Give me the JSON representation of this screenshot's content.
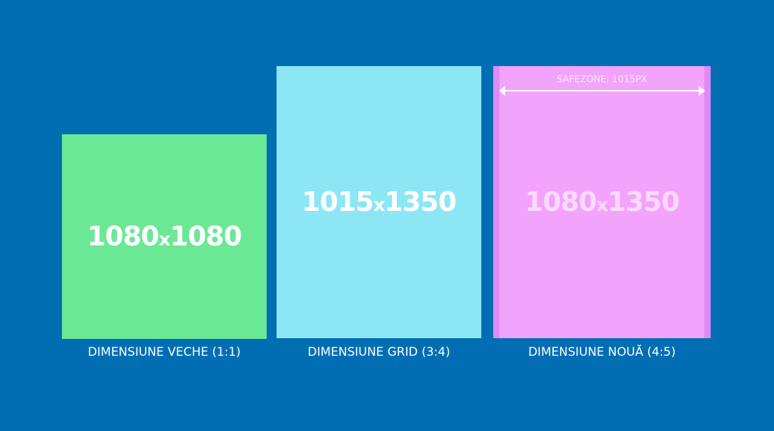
{
  "colors": {
    "background": "#016eb4",
    "old": "#6be895",
    "grid": "#8de6f4",
    "new": "#f2a3fb",
    "safezone_edge": "#e08af7"
  },
  "formats": [
    {
      "w": "1080",
      "h": "1080",
      "caption": "DIMENSIUNE VECHE (1:1)"
    },
    {
      "w": "1015",
      "h": "1350",
      "caption": "DIMENSIUNE GRID (3:4)"
    },
    {
      "w": "1080",
      "h": "1350",
      "caption": "DIMENSIUNE NOUĂ (4:5)"
    }
  ],
  "x_sep": "x",
  "safezone": {
    "label": "SAFEZONE:  1015PX"
  }
}
